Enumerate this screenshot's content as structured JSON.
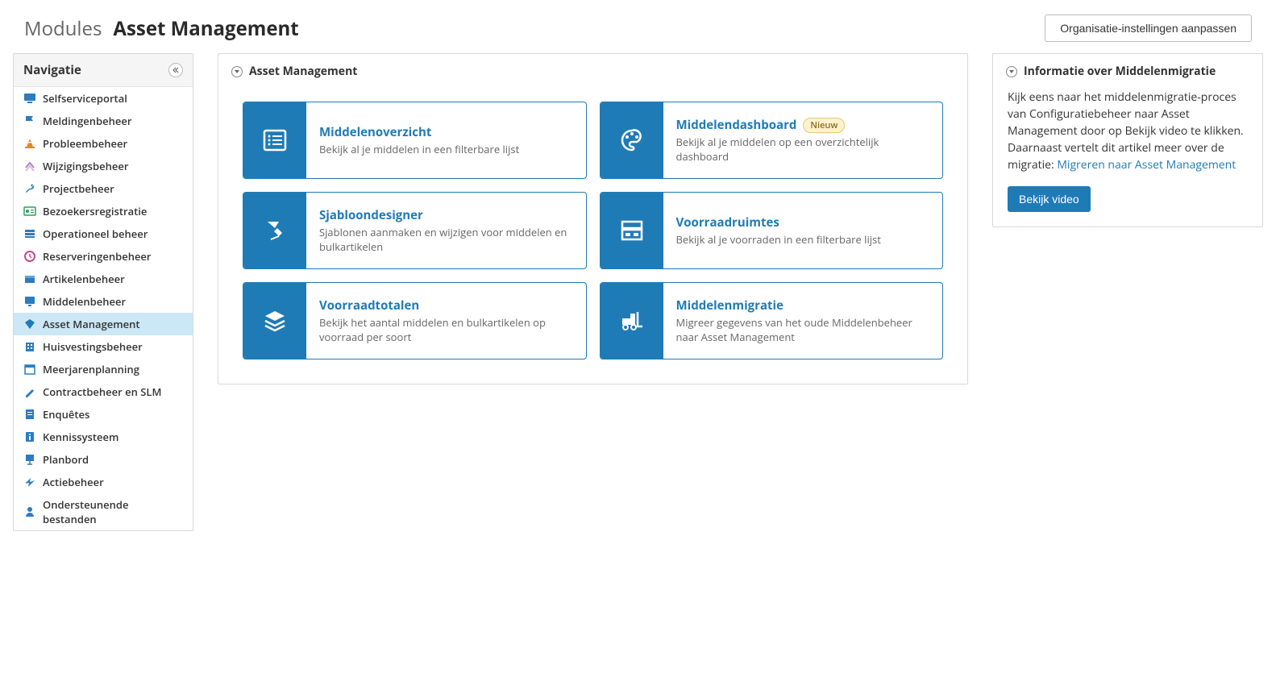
{
  "header": {
    "modules_label": "Modules",
    "title": "Asset Management",
    "settings_button": "Organisatie-instellingen aanpassen"
  },
  "sidebar": {
    "title": "Navigatie",
    "items": [
      {
        "label": "Selfserviceportal",
        "color": "#2b7cc0",
        "icon": "monitor",
        "active": false
      },
      {
        "label": "Meldingenbeheer",
        "color": "#2b7cc0",
        "icon": "flag",
        "active": false
      },
      {
        "label": "Probleembeheer",
        "color": "#e9862a",
        "icon": "cone",
        "active": false
      },
      {
        "label": "Wijzigingsbeheer",
        "color": "#b57dc8",
        "icon": "arrows",
        "active": false
      },
      {
        "label": "Projectbeheer",
        "color": "#2b7cc0",
        "icon": "wrench",
        "active": false
      },
      {
        "label": "Bezoekersregistratie",
        "color": "#2aa25a",
        "icon": "id",
        "active": false
      },
      {
        "label": "Operationeel beheer",
        "color": "#2b7cc0",
        "icon": "stack",
        "active": false
      },
      {
        "label": "Reserveringenbeheer",
        "color": "#c24a8e",
        "icon": "clock",
        "active": false
      },
      {
        "label": "Artikelenbeheer",
        "color": "#2b7cc0",
        "icon": "box",
        "active": false
      },
      {
        "label": "Middelenbeheer",
        "color": "#2b7cc0",
        "icon": "screen",
        "active": false
      },
      {
        "label": "Asset Management",
        "color": "#1f7bb6",
        "icon": "gem",
        "active": true
      },
      {
        "label": "Huisvestingsbeheer",
        "color": "#2b7cc0",
        "icon": "building",
        "active": false
      },
      {
        "label": "Meerjarenplanning",
        "color": "#2b7cc0",
        "icon": "calendar",
        "active": false
      },
      {
        "label": "Contractbeheer en SLM",
        "color": "#2b7cc0",
        "icon": "pen",
        "active": false
      },
      {
        "label": "Enquêtes",
        "color": "#2b7cc0",
        "icon": "survey",
        "active": false
      },
      {
        "label": "Kennissysteem",
        "color": "#2b7cc0",
        "icon": "info",
        "active": false
      },
      {
        "label": "Planbord",
        "color": "#2b7cc0",
        "icon": "board",
        "active": false
      },
      {
        "label": "Actiebeheer",
        "color": "#2b7cc0",
        "icon": "bolt",
        "active": false
      },
      {
        "label": "Ondersteunende bestanden",
        "color": "#2b7cc0",
        "icon": "person",
        "active": false
      }
    ]
  },
  "main": {
    "panel_title": "Asset Management",
    "cards": [
      {
        "title": "Middelenoverzicht",
        "desc": "Bekijk al je middelen in een filterbare lijst",
        "icon": "list",
        "badge": null
      },
      {
        "title": "Middelendashboard",
        "desc": "Bekijk al je middelen op een overzichtelijk dashboard",
        "icon": "palette",
        "badge": "Nieuw"
      },
      {
        "title": "Sjabloondesigner",
        "desc": "Sjablonen aanmaken en wijzigen voor middelen en bulkartikelen",
        "icon": "design",
        "badge": null
      },
      {
        "title": "Voorraadruimtes",
        "desc": "Bekijk al je voorraden in een filterbare lijst",
        "icon": "storage",
        "badge": null
      },
      {
        "title": "Voorraadtotalen",
        "desc": "Bekijk het aantal middelen en bulkartikelen op voorraad per soort",
        "icon": "layers",
        "badge": null
      },
      {
        "title": "Middelenmigratie",
        "desc": "Migreer gegevens van het oude Middelenbeheer naar Asset Management",
        "icon": "forklift",
        "badge": null
      }
    ]
  },
  "info": {
    "title": "Informatie over Middelenmigratie",
    "text_before_link": "Kijk eens naar het middelenmigratie-proces van Configuratiebeheer naar Asset Management door op Bekijk video te klikken. Daarnaast vertelt dit artikel meer over de migratie: ",
    "link_text": "Migreren naar Asset Management",
    "button": "Bekijk video"
  },
  "colors": {
    "accent": "#1f7bb6",
    "nav_active_bg": "#cce7f5",
    "border": "#d8d8d8",
    "text_muted": "#666"
  }
}
